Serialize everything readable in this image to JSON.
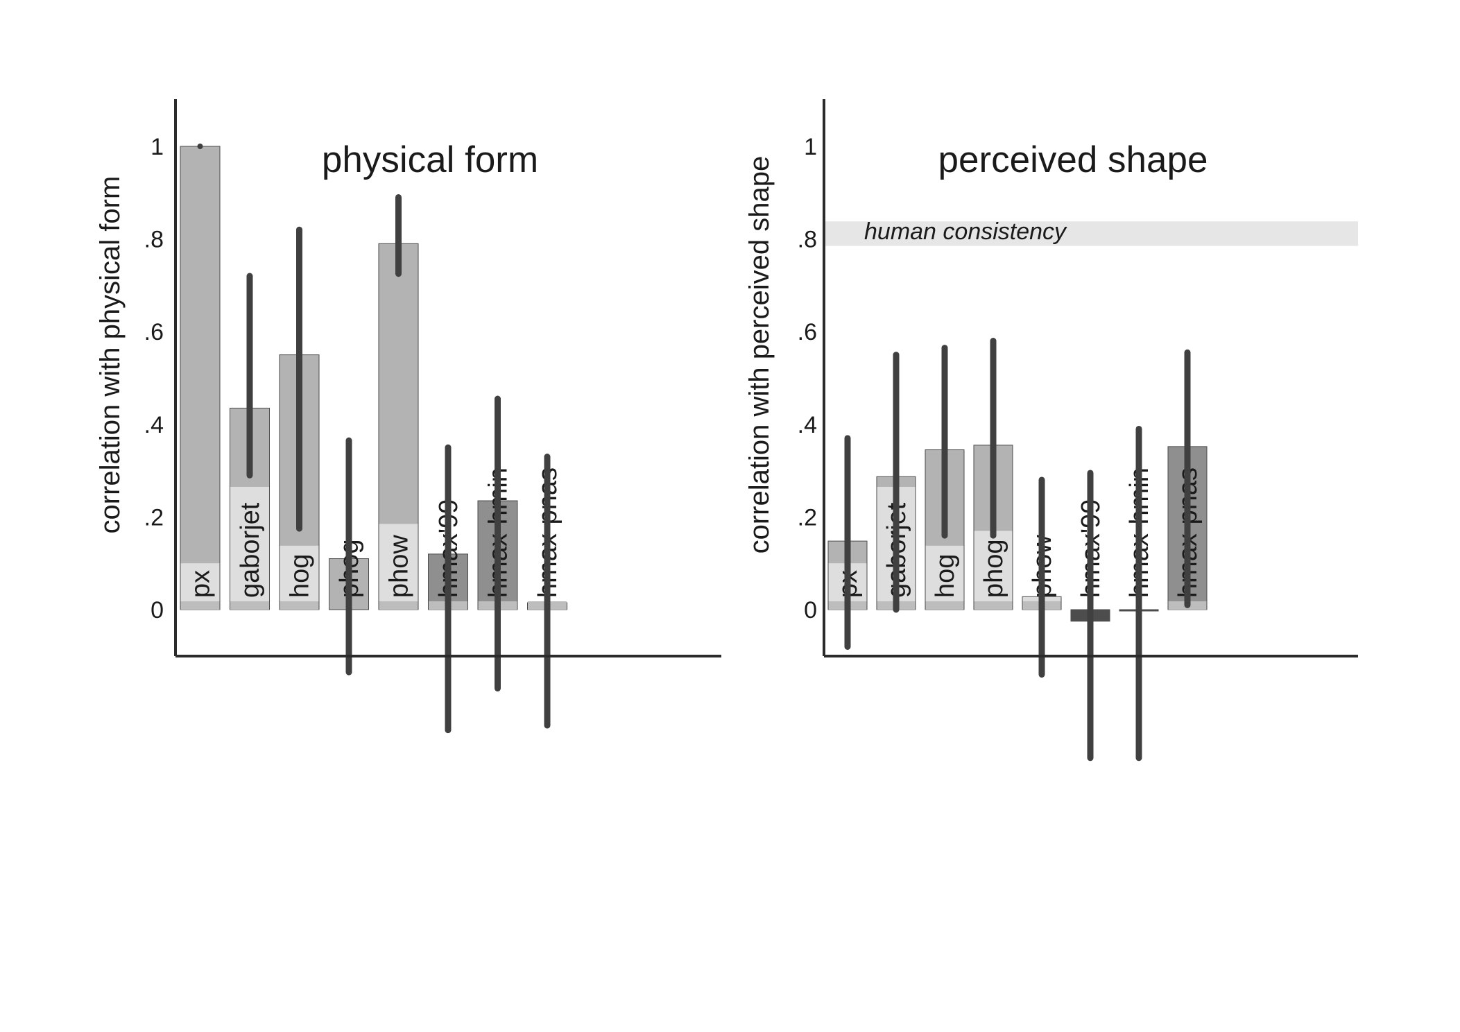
{
  "chart_data": [
    {
      "type": "bar",
      "title": "physical form",
      "xlabel": "",
      "ylabel": "correlation with physical form",
      "ylim": [
        -0.1,
        1.1
      ],
      "yticks": [
        "0",
        ".2",
        ".4",
        ".6",
        ".8",
        "1"
      ],
      "yticks_values": [
        0,
        0.2,
        0.4,
        0.6,
        0.8,
        1
      ],
      "grid": false,
      "categories": [
        "px",
        "gaborjet",
        "hog",
        "phog",
        "phow",
        "hmax'99",
        "hmax-hmin",
        "hmax-pnas"
      ],
      "values": [
        1.0,
        0.435,
        0.55,
        0.11,
        0.79,
        0.12,
        0.235,
        0.015
      ],
      "floor": [
        0.1,
        0.265,
        0.138,
        0.0,
        0.185,
        0.018,
        0.018,
        0.015
      ],
      "error_low": [
        1.0,
        0.29,
        0.175,
        -0.135,
        0.725,
        -0.26,
        -0.17,
        -0.25
      ],
      "error_high": [
        1.0,
        0.72,
        0.82,
        0.365,
        0.89,
        0.35,
        0.455,
        0.33
      ],
      "bar_colors": [
        "#b3b3b3",
        "#b3b3b3",
        "#b3b3b3",
        "#b3b3b3",
        "#b3b3b3",
        "#8f8f8f",
        "#8f8f8f",
        "#4d4d4d"
      ],
      "floor_color": "#dedede",
      "error_color": "#404040"
    },
    {
      "type": "bar",
      "title": "perceived shape",
      "xlabel": "",
      "ylabel": "correlation with perceived shape",
      "ylim": [
        -0.1,
        1.1
      ],
      "yticks": [
        "0",
        ".2",
        ".4",
        ".6",
        ".8",
        "1"
      ],
      "yticks_values": [
        0,
        0.2,
        0.4,
        0.6,
        0.8,
        1
      ],
      "grid": false,
      "categories": [
        "px",
        "gaborjet",
        "hog",
        "phog",
        "phow",
        "hmax'99",
        "hmax-hmin",
        "hmax-pnas"
      ],
      "values": [
        0.148,
        0.287,
        0.345,
        0.355,
        0.028,
        -0.025,
        -0.003,
        0.352
      ],
      "floor": [
        0.1,
        0.265,
        0.138,
        0.17,
        0.018,
        0.0,
        0.0,
        0.018
      ],
      "error_low": [
        -0.08,
        0.0,
        0.16,
        0.16,
        -0.14,
        -0.32,
        -0.32,
        0.01
      ],
      "error_high": [
        0.37,
        0.55,
        0.565,
        0.58,
        0.28,
        0.295,
        0.39,
        0.555
      ],
      "bar_colors": [
        "#b3b3b3",
        "#b3b3b3",
        "#b3b3b3",
        "#b3b3b3",
        "#dcdcdc",
        "#4d4d4d",
        "#4d4d4d",
        "#8f8f8f"
      ],
      "floor_color": "#dedede",
      "error_color": "#404040",
      "reference_band": {
        "label": "human consistency",
        "low": 0.785,
        "high": 0.838,
        "color": "#e6e6e6"
      }
    }
  ]
}
